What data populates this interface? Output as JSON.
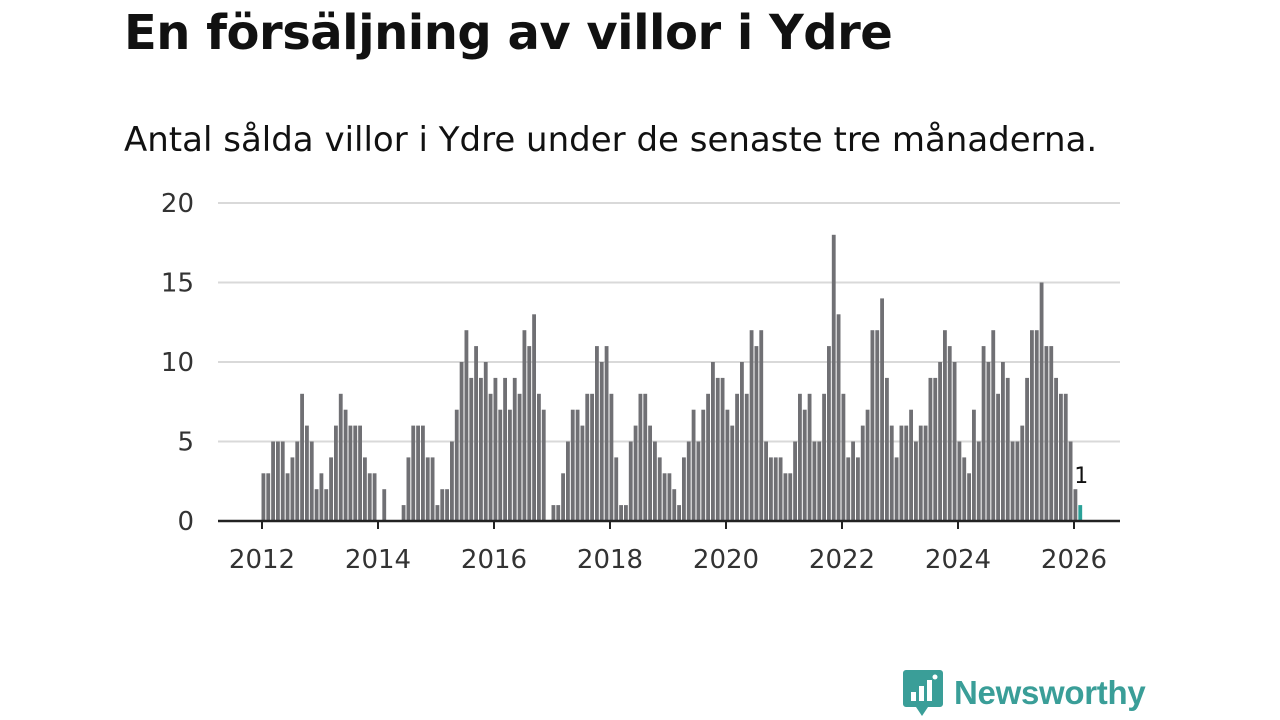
{
  "title": "En försäljning av villor i Ydre",
  "subtitle": "Antal sålda villor i Ydre under de senaste tre månaderna.",
  "brand": "Newsworthy",
  "colors": {
    "bar": "#707074",
    "highlight": "#2aa198",
    "grid": "#d9d9d9",
    "axis": "#222222",
    "brand": "#3a9e98"
  },
  "chart_data": {
    "type": "bar",
    "title": "En försäljning av villor i Ydre",
    "xlabel": "",
    "ylabel": "",
    "ylim": [
      0,
      20
    ],
    "y_ticks": [
      0,
      5,
      10,
      15,
      20
    ],
    "x_ticks": [
      "2012",
      "2014",
      "2016",
      "2018",
      "2020",
      "2022",
      "2024",
      "2026"
    ],
    "start": "2012-01",
    "frequency": "monthly",
    "highlight_label": "1",
    "values": [
      3,
      3,
      5,
      5,
      5,
      3,
      4,
      5,
      8,
      6,
      5,
      2,
      3,
      2,
      4,
      6,
      8,
      7,
      6,
      6,
      6,
      4,
      3,
      3,
      0,
      2,
      0,
      0,
      0,
      1,
      4,
      6,
      6,
      6,
      4,
      4,
      1,
      2,
      2,
      5,
      7,
      10,
      12,
      9,
      11,
      9,
      10,
      8,
      9,
      7,
      9,
      7,
      9,
      8,
      12,
      11,
      13,
      8,
      7,
      0,
      1,
      1,
      3,
      5,
      7,
      7,
      6,
      8,
      8,
      11,
      10,
      11,
      8,
      4,
      1,
      1,
      5,
      6,
      8,
      8,
      6,
      5,
      4,
      3,
      3,
      2,
      1,
      4,
      5,
      7,
      5,
      7,
      8,
      10,
      9,
      9,
      7,
      6,
      8,
      10,
      8,
      12,
      11,
      12,
      5,
      4,
      4,
      4,
      3,
      3,
      5,
      8,
      7,
      8,
      5,
      5,
      8,
      11,
      18,
      13,
      8,
      4,
      5,
      4,
      6,
      7,
      12,
      12,
      14,
      9,
      6,
      4,
      6,
      6,
      7,
      5,
      6,
      6,
      9,
      9,
      10,
      12,
      11,
      10,
      5,
      4,
      3,
      7,
      5,
      11,
      10,
      12,
      8,
      10,
      9,
      5,
      5,
      6,
      9,
      12,
      12,
      15,
      11,
      11,
      9,
      8,
      8,
      5,
      2,
      1
    ]
  }
}
